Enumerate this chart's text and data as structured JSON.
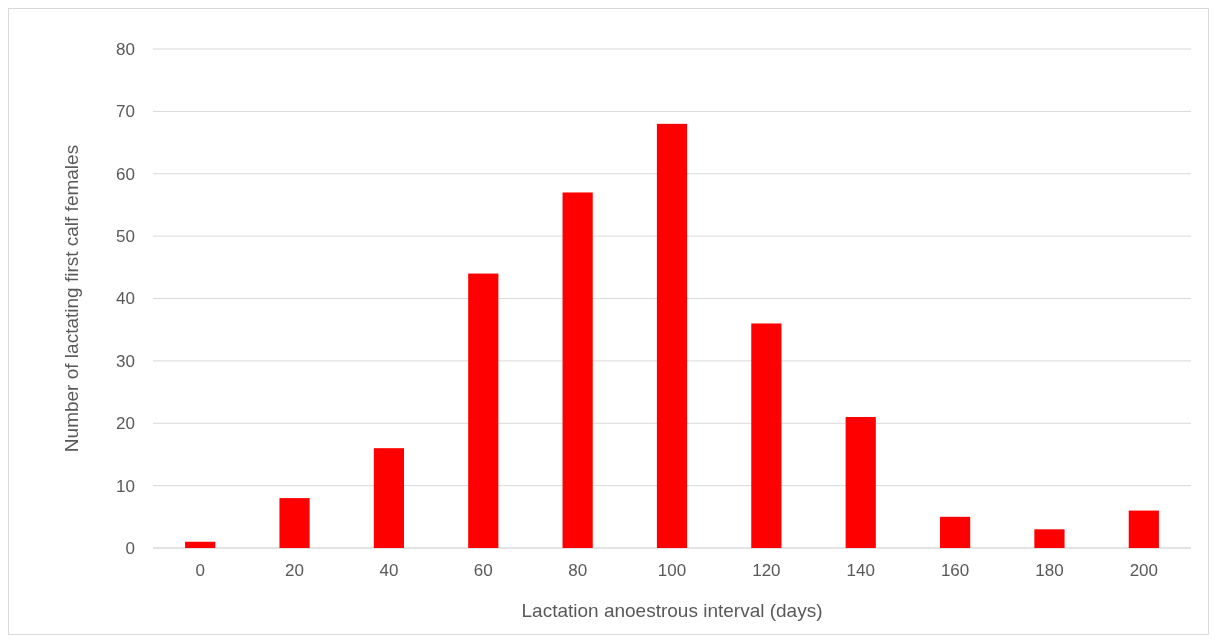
{
  "chart_data": {
    "type": "bar",
    "xlabel": "Lactation anoestrous interval (days)",
    "ylabel": "Number of lactating first calf females",
    "categories": [
      "0",
      "20",
      "40",
      "60",
      "80",
      "100",
      "120",
      "140",
      "160",
      "180",
      "200"
    ],
    "values": [
      1,
      8,
      16,
      44,
      57,
      68,
      36,
      21,
      5,
      3,
      6
    ],
    "color": "#ff0000",
    "ylim": [
      0,
      80
    ],
    "yticks": [
      0,
      10,
      20,
      30,
      40,
      50,
      60,
      70,
      80
    ],
    "grid": "y"
  }
}
